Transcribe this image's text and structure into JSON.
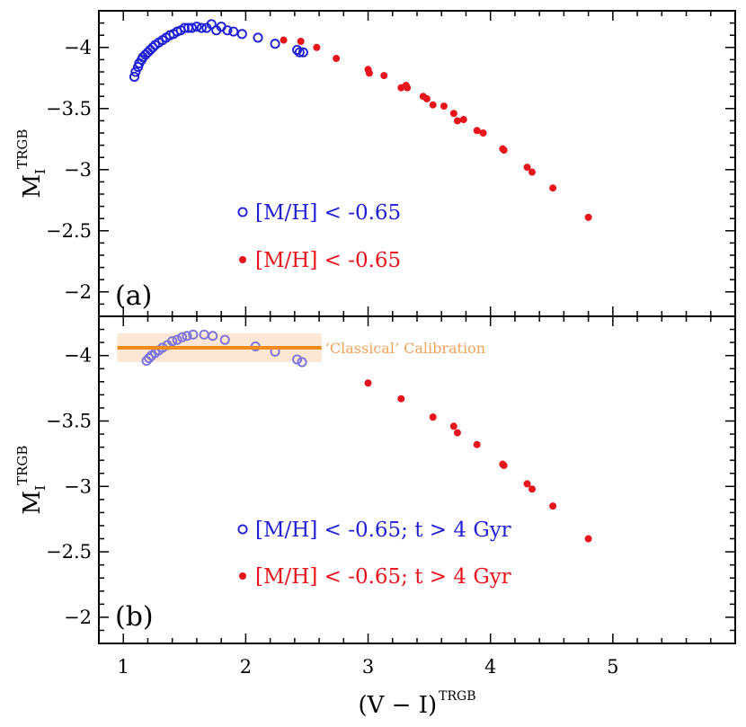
{
  "chart_data": [
    {
      "type": "scatter",
      "panel_label": "(a)",
      "ylabel": "M",
      "ylabel_subscript": "I",
      "ylabel_superscript": "TRGB",
      "xlim": [
        0.8,
        6.0
      ],
      "ylim": [
        -1.8,
        -4.3
      ],
      "y_ticks": [
        -4,
        -3.5,
        -3,
        -2.5,
        -2
      ],
      "y_tick_labels": [
        "−4",
        "−3.5",
        "−3",
        "−2.5",
        "−2"
      ],
      "legend_position": "center",
      "series": [
        {
          "name": "[M/H] < -0.65",
          "marker": "open-circle",
          "color": "#1f1fd6",
          "points": [
            [
              1.09,
              -3.76
            ],
            [
              1.1,
              -3.8
            ],
            [
              1.12,
              -3.84
            ],
            [
              1.13,
              -3.87
            ],
            [
              1.15,
              -3.9
            ],
            [
              1.16,
              -3.92
            ],
            [
              1.18,
              -3.94
            ],
            [
              1.2,
              -3.96
            ],
            [
              1.22,
              -3.98
            ],
            [
              1.24,
              -4.0
            ],
            [
              1.26,
              -4.02
            ],
            [
              1.29,
              -4.04
            ],
            [
              1.32,
              -4.06
            ],
            [
              1.35,
              -4.08
            ],
            [
              1.38,
              -4.1
            ],
            [
              1.41,
              -4.11
            ],
            [
              1.44,
              -4.13
            ],
            [
              1.47,
              -4.14
            ],
            [
              1.5,
              -4.16
            ],
            [
              1.53,
              -4.16
            ],
            [
              1.56,
              -4.16
            ],
            [
              1.6,
              -4.17
            ],
            [
              1.64,
              -4.16
            ],
            [
              1.68,
              -4.16
            ],
            [
              1.72,
              -4.19
            ],
            [
              1.76,
              -4.14
            ],
            [
              1.8,
              -4.17
            ],
            [
              1.85,
              -4.14
            ],
            [
              1.9,
              -4.13
            ],
            [
              1.97,
              -4.11
            ],
            [
              2.1,
              -4.08
            ],
            [
              2.24,
              -4.03
            ],
            [
              2.42,
              -3.98
            ],
            [
              2.44,
              -3.96
            ],
            [
              2.47,
              -3.96
            ]
          ]
        },
        {
          "name": "[M/H] < -0.65",
          "marker": "filled-circle",
          "color": "#e8141c",
          "points": [
            [
              2.31,
              -4.06
            ],
            [
              2.45,
              -4.05
            ],
            [
              2.58,
              -4.0
            ],
            [
              2.74,
              -3.91
            ],
            [
              3.0,
              -3.82
            ],
            [
              3.01,
              -3.79
            ],
            [
              3.13,
              -3.77
            ],
            [
              3.27,
              -3.67
            ],
            [
              3.31,
              -3.69
            ],
            [
              3.32,
              -3.67
            ],
            [
              3.45,
              -3.6
            ],
            [
              3.48,
              -3.58
            ],
            [
              3.53,
              -3.53
            ],
            [
              3.62,
              -3.52
            ],
            [
              3.7,
              -3.46
            ],
            [
              3.73,
              -3.4
            ],
            [
              3.78,
              -3.41
            ],
            [
              3.89,
              -3.32
            ],
            [
              3.94,
              -3.3
            ],
            [
              4.1,
              -3.17
            ],
            [
              4.11,
              -3.16
            ],
            [
              4.3,
              -3.02
            ],
            [
              4.34,
              -2.98
            ],
            [
              4.51,
              -2.85
            ],
            [
              4.8,
              -2.61
            ]
          ]
        }
      ]
    },
    {
      "type": "scatter",
      "panel_label": "(b)",
      "ylabel": "M",
      "ylabel_subscript": "I",
      "ylabel_superscript": "TRGB",
      "xlabel": "(V − I)",
      "xlabel_superscript": "TRGB",
      "xlim": [
        0.8,
        6.0
      ],
      "ylim": [
        -1.8,
        -4.3
      ],
      "x_ticks": [
        1,
        2,
        3,
        4,
        5
      ],
      "x_tick_labels": [
        "1",
        "2",
        "3",
        "4",
        "5"
      ],
      "y_ticks": [
        -4,
        -3.5,
        -3,
        -2.5,
        -2
      ],
      "y_tick_labels": [
        "−4",
        "−3.5",
        "−3",
        "−2.5",
        "−2"
      ],
      "legend_position": "center",
      "annotation": {
        "label": "‘Classical’ Calibration",
        "y": -4.06,
        "y_band": [
          -3.95,
          -4.17
        ],
        "x_range": [
          0.95,
          2.62
        ],
        "line_color": "#ef8c1a",
        "band_color": "#fbe7d4",
        "text_color": "#f0a35a"
      },
      "series": [
        {
          "name": "[M/H] < -0.65; t > 4 Gyr",
          "marker": "open-circle",
          "color": "#1f1fd6",
          "faded_color": "#7b73de",
          "points": [
            [
              1.19,
              -3.96
            ],
            [
              1.21,
              -3.98
            ],
            [
              1.23,
              -4.0
            ],
            [
              1.26,
              -4.02
            ],
            [
              1.29,
              -4.04
            ],
            [
              1.32,
              -4.06
            ],
            [
              1.36,
              -4.08
            ],
            [
              1.4,
              -4.11
            ],
            [
              1.44,
              -4.12
            ],
            [
              1.48,
              -4.14
            ],
            [
              1.52,
              -4.15
            ],
            [
              1.57,
              -4.16
            ],
            [
              1.66,
              -4.16
            ],
            [
              1.73,
              -4.15
            ],
            [
              1.83,
              -4.12
            ],
            [
              2.08,
              -4.07
            ],
            [
              2.24,
              -4.03
            ],
            [
              2.42,
              -3.97
            ],
            [
              2.46,
              -3.95
            ]
          ]
        },
        {
          "name": "[M/H] < -0.65; t > 4 Gyr",
          "marker": "filled-circle",
          "color": "#e8141c",
          "points": [
            [
              3.0,
              -3.79
            ],
            [
              3.27,
              -3.67
            ],
            [
              3.53,
              -3.53
            ],
            [
              3.7,
              -3.46
            ],
            [
              3.73,
              -3.41
            ],
            [
              3.89,
              -3.32
            ],
            [
              4.1,
              -3.17
            ],
            [
              4.11,
              -3.16
            ],
            [
              4.3,
              -3.02
            ],
            [
              4.34,
              -2.98
            ],
            [
              4.51,
              -2.85
            ],
            [
              4.8,
              -2.6
            ]
          ]
        }
      ]
    }
  ]
}
